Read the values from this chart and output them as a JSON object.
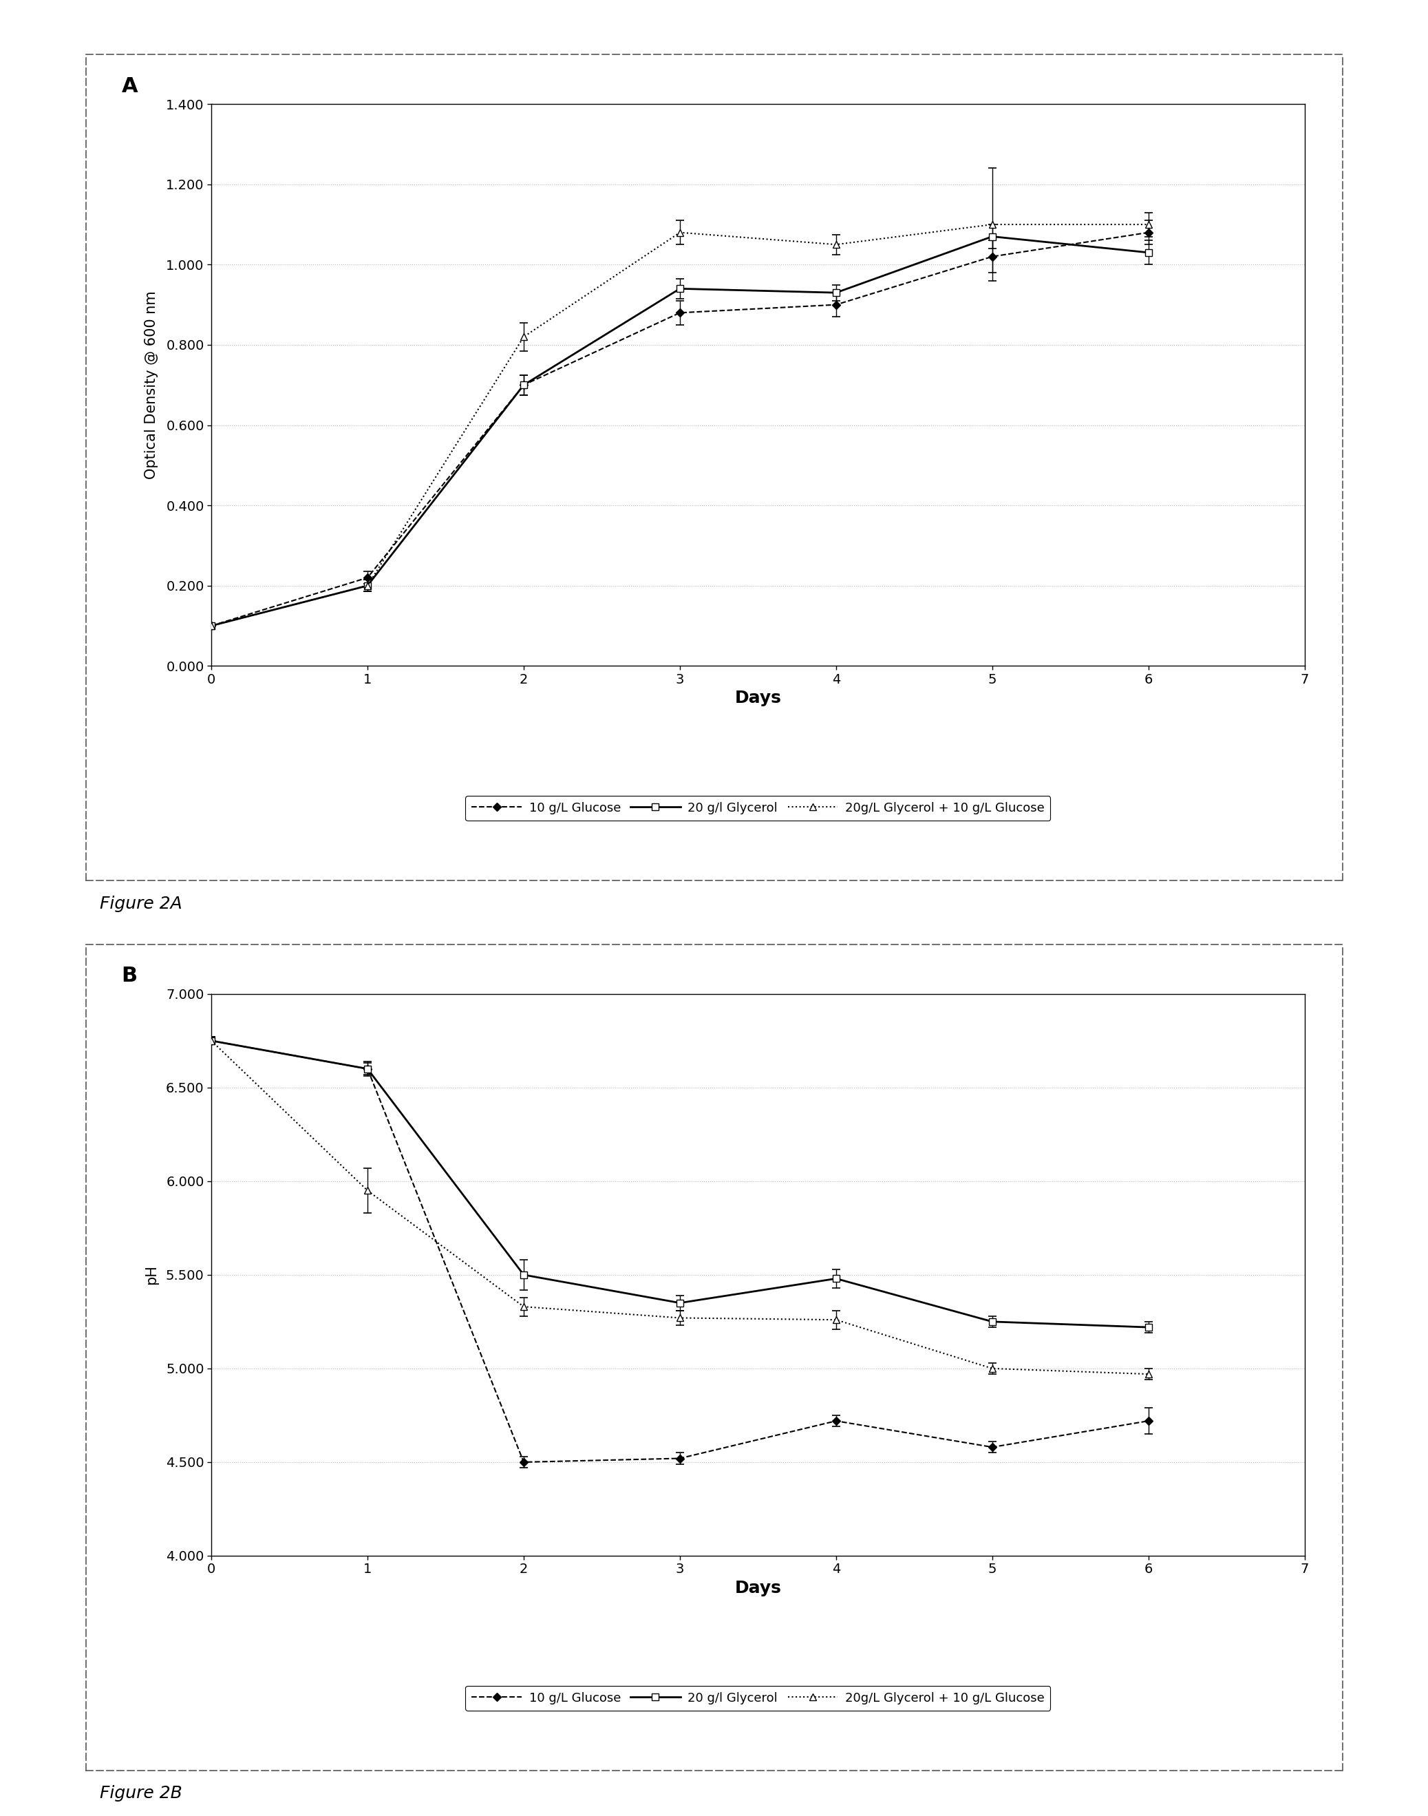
{
  "figA": {
    "title": "A",
    "xlabel": "Days",
    "ylabel": "Optical Density @ 600 nm",
    "xlim": [
      0,
      7
    ],
    "ylim": [
      0.0,
      1.4
    ],
    "yticks": [
      0.0,
      0.2,
      0.4,
      0.6,
      0.8,
      1.0,
      1.2,
      1.4
    ],
    "xticks": [
      0,
      1,
      2,
      3,
      4,
      5,
      6,
      7
    ],
    "series": [
      {
        "label": "10 g/L Glucose",
        "x": [
          0,
          1,
          2,
          3,
          4,
          5,
          6
        ],
        "y": [
          0.1,
          0.22,
          0.7,
          0.88,
          0.9,
          1.02,
          1.08
        ],
        "yerr": [
          0.005,
          0.015,
          0.025,
          0.03,
          0.03,
          0.04,
          0.03
        ],
        "linestyle": "dashed",
        "marker": "D",
        "markerfacecolor": "black",
        "markeredgecolor": "black",
        "color": "black",
        "markersize": 6,
        "linewidth": 1.5
      },
      {
        "label": "20 g/l Glycerol",
        "x": [
          0,
          1,
          2,
          3,
          4,
          5,
          6
        ],
        "y": [
          0.1,
          0.2,
          0.7,
          0.94,
          0.93,
          1.07,
          1.03
        ],
        "yerr": [
          0.005,
          0.015,
          0.025,
          0.025,
          0.02,
          0.03,
          0.03
        ],
        "linestyle": "solid",
        "marker": "s",
        "markerfacecolor": "white",
        "markeredgecolor": "black",
        "color": "black",
        "markersize": 7,
        "linewidth": 2.0
      },
      {
        "label": "20g/L Glycerol + 10 g/L Glucose",
        "x": [
          0,
          1,
          2,
          3,
          4,
          5,
          6
        ],
        "y": [
          0.1,
          0.2,
          0.82,
          1.08,
          1.05,
          1.1,
          1.1
        ],
        "yerr": [
          0.005,
          0.015,
          0.035,
          0.03,
          0.025,
          0.14,
          0.03
        ],
        "linestyle": "dotted",
        "marker": "^",
        "markerfacecolor": "white",
        "markeredgecolor": "black",
        "color": "black",
        "markersize": 7,
        "linewidth": 1.5
      }
    ]
  },
  "figB": {
    "title": "B",
    "xlabel": "Days",
    "ylabel": "pH",
    "xlim": [
      0,
      7
    ],
    "ylim": [
      4.0,
      7.0
    ],
    "yticks": [
      4.0,
      4.5,
      5.0,
      5.5,
      6.0,
      6.5,
      7.0
    ],
    "xticks": [
      0,
      1,
      2,
      3,
      4,
      5,
      6,
      7
    ],
    "series": [
      {
        "label": "10 g/L Glucose",
        "x": [
          0,
          1,
          2,
          3,
          4,
          5,
          6
        ],
        "y": [
          6.75,
          6.6,
          4.5,
          4.52,
          4.72,
          4.58,
          4.72
        ],
        "yerr": [
          0.02,
          0.04,
          0.03,
          0.03,
          0.03,
          0.03,
          0.07
        ],
        "linestyle": "dashed",
        "marker": "D",
        "markerfacecolor": "black",
        "markeredgecolor": "black",
        "color": "black",
        "markersize": 6,
        "linewidth": 1.5
      },
      {
        "label": "20 g/l Glycerol",
        "x": [
          0,
          1,
          2,
          3,
          4,
          5,
          6
        ],
        "y": [
          6.75,
          6.6,
          5.5,
          5.35,
          5.48,
          5.25,
          5.22
        ],
        "yerr": [
          0.02,
          0.03,
          0.08,
          0.04,
          0.05,
          0.03,
          0.03
        ],
        "linestyle": "solid",
        "marker": "s",
        "markerfacecolor": "white",
        "markeredgecolor": "black",
        "color": "black",
        "markersize": 7,
        "linewidth": 2.0
      },
      {
        "label": "20g/L Glycerol + 10 g/L Glucose",
        "x": [
          0,
          1,
          2,
          3,
          4,
          5,
          6
        ],
        "y": [
          6.75,
          5.95,
          5.33,
          5.27,
          5.26,
          5.0,
          4.97
        ],
        "yerr": [
          0.02,
          0.12,
          0.05,
          0.04,
          0.05,
          0.03,
          0.03
        ],
        "linestyle": "dotted",
        "marker": "^",
        "markerfacecolor": "white",
        "markeredgecolor": "black",
        "color": "black",
        "markersize": 7,
        "linewidth": 1.5
      }
    ]
  },
  "background_color": "#ffffff",
  "grid_color": "#bbbbbb",
  "figA_caption": "Figure 2A",
  "figB_caption": "Figure 2B"
}
